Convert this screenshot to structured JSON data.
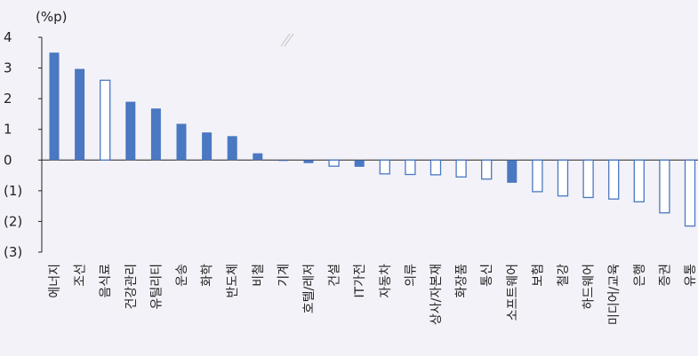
{
  "chart_data": {
    "type": "bar",
    "unit_label": "(%p)",
    "y_ticks": [
      {
        "value": 4,
        "label": "4"
      },
      {
        "value": 3,
        "label": "3"
      },
      {
        "value": 2,
        "label": "2"
      },
      {
        "value": 1,
        "label": "1"
      },
      {
        "value": 0,
        "label": "0"
      },
      {
        "value": -1,
        "label": "(1)"
      },
      {
        "value": -2,
        "label": "(2)"
      },
      {
        "value": -3,
        "label": "(3)"
      }
    ],
    "ylim": [
      -3,
      4
    ],
    "grid": false,
    "legend": "none",
    "colors": {
      "filled": "#4a78c2",
      "outline": "#4a78c2",
      "axis": "#222222",
      "break_mark": "#cccccc"
    },
    "categories": [
      "에너지",
      "조선",
      "음식료",
      "건강관리",
      "유틸리티",
      "운송",
      "화학",
      "반도체",
      "비철",
      "기계",
      "호텔/레저",
      "건설",
      "IT가전",
      "자동차",
      "의류",
      "상사/자본재",
      "화장품",
      "통신",
      "소프트웨어",
      "보험",
      "철강",
      "하드웨어",
      "미디어/교육",
      "은행",
      "증권",
      "유통"
    ],
    "values": [
      3.5,
      2.97,
      2.6,
      1.9,
      1.68,
      1.18,
      0.9,
      0.78,
      0.22,
      -0.02,
      -0.1,
      -0.2,
      -0.22,
      -0.45,
      -0.47,
      -0.48,
      -0.55,
      -0.62,
      -0.74,
      -1.03,
      -1.17,
      -1.22,
      -1.27,
      -1.36,
      -1.72,
      -2.15
    ],
    "styles": [
      "filled",
      "filled",
      "outline",
      "filled",
      "filled",
      "filled",
      "filled",
      "filled",
      "filled",
      "filled",
      "filled",
      "outline",
      "filled",
      "outline",
      "outline",
      "outline",
      "outline",
      "outline",
      "filled",
      "outline",
      "outline",
      "outline",
      "outline",
      "outline",
      "outline",
      "outline"
    ]
  }
}
